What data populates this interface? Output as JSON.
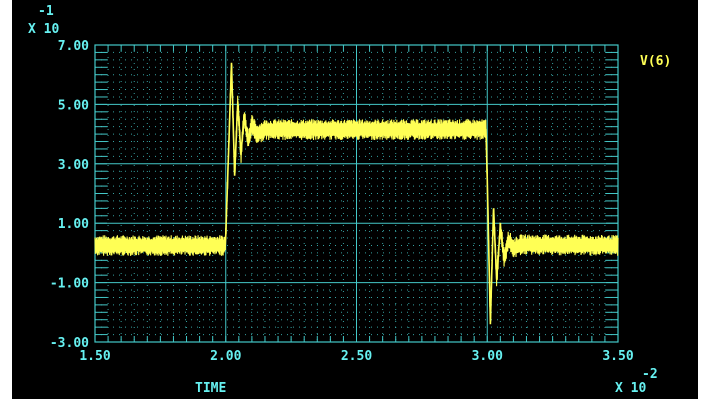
{
  "chart_data": {
    "type": "line",
    "title": "",
    "xlabel": "TIME",
    "ylabel": "",
    "x_multiplier": "X 10",
    "x_multiplier_exp": "-2",
    "y_multiplier": "X 10",
    "y_multiplier_exp": "-1",
    "xlim": [
      1.5,
      3.5
    ],
    "ylim": [
      -3.0,
      7.0
    ],
    "x_ticks": [
      {
        "value": 1.5,
        "label": "1.50"
      },
      {
        "value": 2.0,
        "label": "2.00"
      },
      {
        "value": 2.5,
        "label": "2.50"
      },
      {
        "value": 3.0,
        "label": "3.00"
      },
      {
        "value": 3.5,
        "label": "3.50"
      }
    ],
    "y_ticks": [
      {
        "value": 7.0,
        "label": "7.00"
      },
      {
        "value": 5.0,
        "label": "5.00"
      },
      {
        "value": 3.0,
        "label": "3.00"
      },
      {
        "value": 1.0,
        "label": "1.00"
      },
      {
        "value": -1.0,
        "label": "-1.00"
      },
      {
        "value": -3.0,
        "label": "-3.00"
      }
    ],
    "grid": true,
    "legend_position": "top-right",
    "series": [
      {
        "name": "V(6)",
        "color": "#ffff55",
        "points": [
          [
            1.5,
            0.25
          ],
          [
            1.998,
            0.25
          ],
          [
            2.0,
            0.6
          ],
          [
            2.01,
            3.2
          ],
          [
            2.022,
            6.4
          ],
          [
            2.034,
            2.6
          ],
          [
            2.046,
            5.1
          ],
          [
            2.058,
            3.3
          ],
          [
            2.07,
            4.6
          ],
          [
            2.085,
            3.8
          ],
          [
            2.1,
            4.3
          ],
          [
            2.12,
            4.0
          ],
          [
            2.15,
            4.15
          ],
          [
            2.995,
            4.15
          ],
          [
            3.0,
            2.5
          ],
          [
            3.012,
            -2.4
          ],
          [
            3.024,
            1.5
          ],
          [
            3.036,
            -0.9
          ],
          [
            3.05,
            0.9
          ],
          [
            3.065,
            -0.2
          ],
          [
            3.08,
            0.45
          ],
          [
            3.1,
            0.15
          ],
          [
            3.13,
            0.28
          ],
          [
            3.5,
            0.25
          ]
        ],
        "noise_amplitude": 0.35
      }
    ]
  },
  "colors": {
    "background": "#000000",
    "grid": "#44c8c8",
    "text": "#66f0f0",
    "trace": "#ffff55"
  }
}
